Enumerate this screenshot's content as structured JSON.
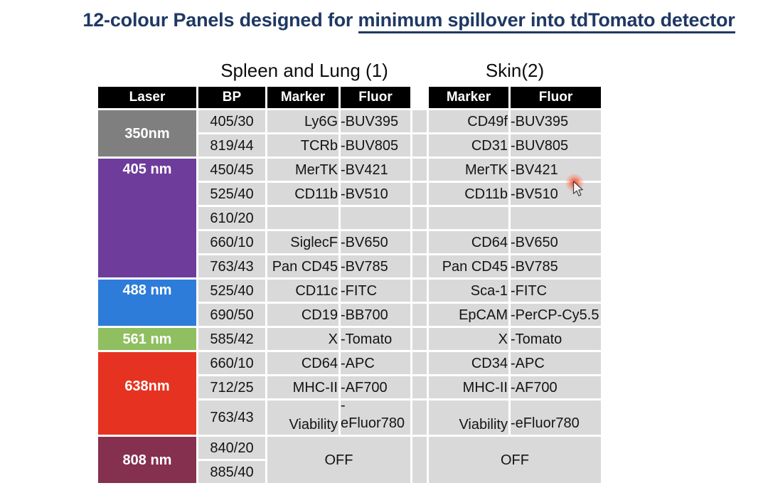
{
  "title": {
    "text_before": "12-colour Panels designed for ",
    "text_underlined": "minimum spillover into tdTomato detector"
  },
  "panels": {
    "left_title": "Spleen and Lung (1)",
    "right_title": "Skin(2)"
  },
  "colors": {
    "title_text": "#1f3864",
    "header_bg": "#000000",
    "header_text": "#ffffff",
    "cell_bg": "#d9d9d9",
    "cell_text": "#141414",
    "laser_350": "#7f7f7f",
    "laser_405": "#6e3d9b",
    "laser_488": "#2e7cd9",
    "laser_561": "#8fbf60",
    "laser_638": "#e63321",
    "laser_808": "#84304e",
    "laser_pointer_dot": "#ff3c1e"
  },
  "table": {
    "column_headers": [
      "Laser",
      "BP",
      "Marker",
      "Fluor",
      "Marker",
      "Fluor"
    ],
    "off_label": "OFF",
    "lasers": [
      {
        "label": "350nm",
        "color_key": "laser_350",
        "rows": 2,
        "valign": "center"
      },
      {
        "label": "405 nm",
        "color_key": "laser_405",
        "rows": 5,
        "valign": "top"
      },
      {
        "label": "488 nm",
        "color_key": "laser_488",
        "rows": 2,
        "valign": "top"
      },
      {
        "label": "561 nm",
        "color_key": "laser_561",
        "rows": 1,
        "valign": "center"
      },
      {
        "label": "638nm",
        "color_key": "laser_638",
        "rows": 3,
        "valign": "center-up"
      },
      {
        "label": "808 nm",
        "color_key": "laser_808",
        "rows": 2,
        "valign": "center"
      }
    ],
    "rows": [
      {
        "bp": "405/30",
        "marker1": "Ly6G",
        "fluor1": "-BUV395",
        "marker2": "CD49f",
        "fluor2": "-BUV395"
      },
      {
        "bp": "819/44",
        "marker1": "TCRb",
        "fluor1": "-BUV805",
        "marker2": "CD31",
        "fluor2": "-BUV805"
      },
      {
        "bp": "450/45",
        "marker1": "MerTK",
        "fluor1": "-BV421",
        "marker2": "MerTK",
        "fluor2": "-BV421"
      },
      {
        "bp": "525/40",
        "marker1": "CD11b",
        "fluor1": "-BV510",
        "marker2": "CD11b",
        "fluor2": "-BV510"
      },
      {
        "bp": "610/20",
        "marker1": "",
        "fluor1": "",
        "marker2": "",
        "fluor2": ""
      },
      {
        "bp": "660/10",
        "marker1": "SiglecF",
        "fluor1": "-BV650",
        "marker2": "CD64",
        "fluor2": "-BV650"
      },
      {
        "bp": "763/43",
        "marker1": "Pan CD45",
        "fluor1": "-BV785",
        "marker2": "Pan CD45",
        "fluor2": "-BV785"
      },
      {
        "bp": "525/40",
        "marker1": "CD11c",
        "fluor1": "-FITC",
        "marker2": "Sca-1",
        "fluor2": "-FITC"
      },
      {
        "bp": "690/50",
        "marker1": "CD19",
        "fluor1": "-BB700",
        "marker2": "EpCAM",
        "fluor2": "-PerCP-Cy5.5"
      },
      {
        "bp": "585/42",
        "marker1": "X",
        "fluor1": "-Tomato",
        "marker2": "X",
        "fluor2": "-Tomato"
      },
      {
        "bp": "660/10",
        "marker1": "CD64",
        "fluor1": "-APC",
        "marker2": "CD34",
        "fluor2": "-APC"
      },
      {
        "bp": "712/25",
        "marker1": "MHC-II",
        "fluor1": "-AF700",
        "marker2": "MHC-II",
        "fluor2": "-AF700"
      },
      {
        "bp": "763/43",
        "marker1": "Viability",
        "fluor1": "-\neFluor780",
        "marker2": "Viability",
        "fluor2": "-eFluor780",
        "tall": true
      },
      {
        "bp": "840/20",
        "off": true
      },
      {
        "bp": "885/40",
        "off_cont": true
      }
    ]
  }
}
